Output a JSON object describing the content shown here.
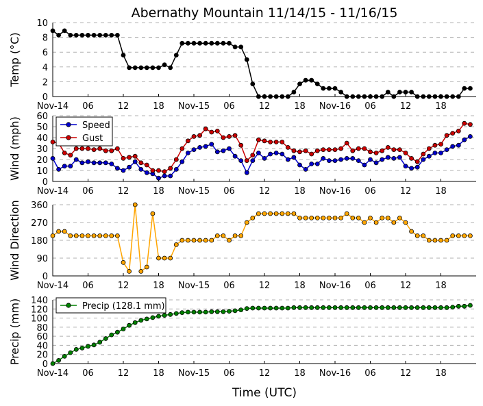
{
  "chart_data": {
    "type": "line",
    "title": "Abernathy Mountain 11/14/15 - 11/16/15",
    "xlabel": "Time (UTC)",
    "x_ticks": [
      "Nov-14",
      "06",
      "12",
      "18",
      "Nov-15",
      "06",
      "12",
      "18",
      "Nov-16",
      "06",
      "12",
      "18"
    ],
    "x_tick_hours": [
      0,
      6,
      12,
      18,
      24,
      30,
      36,
      42,
      48,
      54,
      60,
      66
    ],
    "xlim": [
      0,
      72
    ],
    "panels": [
      {
        "ylabel": "Temp (°C)",
        "ylim": [
          0,
          10
        ],
        "yticks": [
          0,
          2,
          4,
          6,
          8,
          10
        ],
        "legend": null,
        "series": [
          {
            "name": "Temp",
            "color": "#000000",
            "hours": [
              0,
              1,
              2,
              3,
              4,
              5,
              6,
              7,
              8,
              9,
              10,
              11,
              12,
              13,
              14,
              15,
              16,
              17,
              18,
              19,
              20,
              21,
              22,
              23,
              24,
              25,
              26,
              27,
              28,
              29,
              30,
              31,
              32,
              33,
              34,
              35,
              36,
              37,
              38,
              39,
              40,
              41,
              42,
              43,
              44,
              45,
              46,
              47,
              48,
              49,
              50,
              51,
              52,
              53,
              54,
              55,
              56,
              57,
              58,
              59,
              60,
              61,
              62,
              63,
              64,
              65,
              66,
              67,
              68,
              69,
              70,
              71
            ],
            "values": [
              8.9,
              8.3,
              8.9,
              8.3,
              8.3,
              8.3,
              8.3,
              8.3,
              8.3,
              8.3,
              8.3,
              8.3,
              5.6,
              3.9,
              3.9,
              3.9,
              3.9,
              3.9,
              3.9,
              4.3,
              3.9,
              5.6,
              7.2,
              7.2,
              7.2,
              7.2,
              7.2,
              7.2,
              7.2,
              7.2,
              7.2,
              6.7,
              6.7,
              5.0,
              1.7,
              0.0,
              0.0,
              0.0,
              0.0,
              0.0,
              0.0,
              0.6,
              1.7,
              2.2,
              2.2,
              1.7,
              1.1,
              1.1,
              1.1,
              0.6,
              0.0,
              0.0,
              0.0,
              0.0,
              0.0,
              0.0,
              0.0,
              0.6,
              0.0,
              0.6,
              0.6,
              0.6,
              0.0,
              0.0,
              0.0,
              0.0,
              0.0,
              0.0,
              0.0,
              0.0,
              1.1,
              1.1
            ]
          }
        ]
      },
      {
        "ylabel": "Wind (mph)",
        "ylim": [
          0,
          60
        ],
        "yticks": [
          0,
          10,
          20,
          30,
          40,
          50,
          60
        ],
        "legend": [
          "Speed",
          "Gust"
        ],
        "series": [
          {
            "name": "Speed",
            "color": "#0000cc",
            "hours": [
              0,
              1,
              2,
              3,
              4,
              5,
              6,
              7,
              8,
              9,
              10,
              11,
              12,
              13,
              14,
              15,
              16,
              17,
              18,
              19,
              20,
              21,
              22,
              23,
              24,
              25,
              26,
              27,
              28,
              29,
              30,
              31,
              32,
              33,
              34,
              35,
              36,
              37,
              38,
              39,
              40,
              41,
              42,
              43,
              44,
              45,
              46,
              47,
              48,
              49,
              50,
              51,
              52,
              53,
              54,
              55,
              56,
              57,
              58,
              59,
              60,
              61,
              62,
              63,
              64,
              65,
              66,
              67,
              68,
              69,
              70,
              71
            ],
            "values": [
              21,
              11,
              14,
              14,
              20,
              17,
              18,
              17,
              17,
              17,
              16,
              12,
              10,
              13,
              18,
              11,
              8,
              7,
              3,
              5,
              5,
              11,
              18,
              26,
              29,
              31,
              32,
              34,
              27,
              28,
              30,
              23,
              19,
              8,
              19,
              26,
              21,
              25,
              26,
              25,
              20,
              22,
              15,
              11,
              16,
              16,
              21,
              19,
              19,
              20,
              21,
              21,
              19,
              15,
              20,
              17,
              20,
              22,
              21,
              22,
              14,
              12,
              13,
              20,
              23,
              26,
              26,
              29,
              32,
              33,
              38,
              41
            ]
          },
          {
            "name": "Gust",
            "color": "#cc0000",
            "hours": [
              0,
              1,
              2,
              3,
              4,
              5,
              6,
              7,
              8,
              9,
              10,
              11,
              12,
              13,
              14,
              15,
              16,
              17,
              18,
              19,
              20,
              21,
              22,
              23,
              24,
              25,
              26,
              27,
              28,
              29,
              30,
              31,
              32,
              33,
              34,
              35,
              36,
              37,
              38,
              39,
              40,
              41,
              42,
              43,
              44,
              45,
              46,
              47,
              48,
              49,
              50,
              51,
              52,
              53,
              54,
              55,
              56,
              57,
              58,
              59,
              60,
              61,
              62,
              63,
              64,
              65,
              66,
              67,
              68,
              69,
              70,
              71
            ],
            "values": [
              36,
              35,
              26,
              24,
              30,
              30,
              30,
              29,
              30,
              28,
              28,
              30,
              21,
              22,
              23,
              17,
              15,
              10,
              10,
              9,
              12,
              20,
              30,
              37,
              41,
              42,
              48,
              45,
              46,
              40,
              41,
              42,
              33,
              19,
              24,
              38,
              37,
              36,
              36,
              36,
              31,
              28,
              27,
              28,
              25,
              28,
              29,
              29,
              29,
              30,
              35,
              28,
              30,
              30,
              27,
              26,
              28,
              31,
              29,
              29,
              26,
              21,
              18,
              25,
              30,
              33,
              34,
              42,
              44,
              46,
              53,
              52
            ]
          }
        ]
      },
      {
        "ylabel": "Wind Direction",
        "ylim": [
          0,
          360
        ],
        "yticks": [
          0,
          90,
          180,
          270,
          360
        ],
        "legend": null,
        "series": [
          {
            "name": "Wind Direction",
            "color": "#ffa500",
            "hours": [
              0,
              1,
              2,
              3,
              4,
              5,
              6,
              7,
              8,
              9,
              10,
              11,
              12,
              13,
              14,
              15,
              16,
              17,
              18,
              19,
              20,
              21,
              22,
              23,
              24,
              25,
              26,
              27,
              28,
              29,
              30,
              31,
              32,
              33,
              34,
              35,
              36,
              37,
              38,
              39,
              40,
              41,
              42,
              43,
              44,
              45,
              46,
              47,
              48,
              49,
              50,
              51,
              52,
              53,
              54,
              55,
              56,
              57,
              58,
              59,
              60,
              61,
              62,
              63,
              64,
              65,
              66,
              67,
              68,
              69,
              70,
              71
            ],
            "values": [
              203,
              225,
              225,
              203,
              203,
              203,
              203,
              203,
              203,
              203,
              203,
              203,
              68,
              23,
              360,
              23,
              45,
              315,
              90,
              90,
              90,
              158,
              180,
              180,
              180,
              180,
              180,
              180,
              203,
              203,
              180,
              203,
              203,
              270,
              293,
              315,
              315,
              315,
              315,
              315,
              315,
              315,
              293,
              293,
              293,
              293,
              293,
              293,
              293,
              293,
              315,
              293,
              293,
              270,
              293,
              270,
              293,
              293,
              270,
              293,
              270,
              225,
              203,
              203,
              180,
              180,
              180,
              180,
              203,
              203,
              203,
              203
            ]
          }
        ]
      },
      {
        "ylabel": "Precip (mm)",
        "ylim": [
          0,
          140
        ],
        "yticks": [
          0,
          20,
          40,
          60,
          80,
          100,
          120,
          140
        ],
        "legend": [
          "Precip (128.1 mm)"
        ],
        "series": [
          {
            "name": "Precip (128.1 mm)",
            "color": "#008000",
            "hours": [
              0,
              1,
              2,
              3,
              4,
              5,
              6,
              7,
              8,
              9,
              10,
              11,
              12,
              13,
              14,
              15,
              16,
              17,
              18,
              19,
              20,
              21,
              22,
              23,
              24,
              25,
              26,
              27,
              28,
              29,
              30,
              31,
              32,
              33,
              34,
              35,
              36,
              37,
              38,
              39,
              40,
              41,
              42,
              43,
              44,
              45,
              46,
              47,
              48,
              49,
              50,
              51,
              52,
              53,
              54,
              55,
              56,
              57,
              58,
              59,
              60,
              61,
              62,
              63,
              64,
              65,
              66,
              67,
              68,
              69,
              70,
              71
            ],
            "values": [
              0,
              7,
              16,
              24,
              31,
              34,
              38,
              41,
              47,
              55,
              63,
              69,
              76,
              84,
              90,
              95,
              98,
              101,
              104,
              106,
              108,
              110,
              112,
              113,
              113,
              113,
              113,
              114,
              114,
              114,
              115,
              116,
              118,
              121,
              122,
              122,
              122,
              122,
              122,
              122,
              122,
              123,
              123,
              123,
              123,
              123,
              123,
              123,
              123,
              123,
              123,
              123,
              123,
              123,
              123,
              123,
              123,
              123,
              123,
              123,
              123,
              123,
              123,
              123,
              123,
              123,
              123,
              123,
              124,
              126,
              126,
              128
            ]
          }
        ]
      }
    ]
  }
}
